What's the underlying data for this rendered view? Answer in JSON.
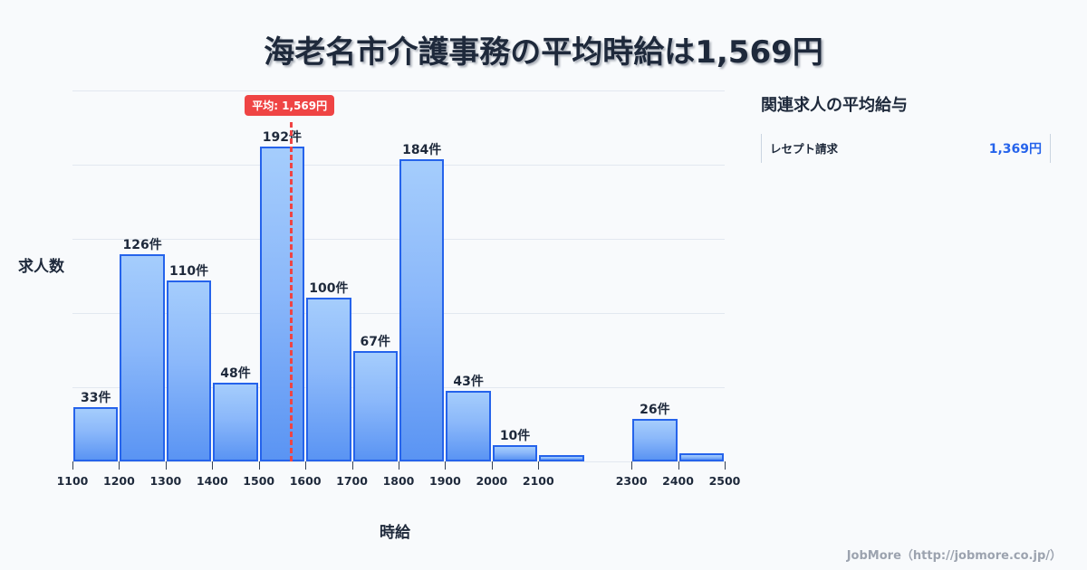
{
  "title": "海老名市介護事務の平均時給は1,569円",
  "chart_data": {
    "type": "bar",
    "title": "海老名市介護事務の平均時給は1,569円",
    "xlabel": "時給",
    "ylabel": "求人数",
    "x_ticks": [
      "1100",
      "1200",
      "1300",
      "1400",
      "1500",
      "1600",
      "1700",
      "1800",
      "1900",
      "2000",
      "2100",
      "2300",
      "2400",
      "2500"
    ],
    "bins": [
      {
        "from": 1100,
        "to": 1200,
        "value": 33,
        "label": "33件"
      },
      {
        "from": 1200,
        "to": 1300,
        "value": 126,
        "label": "126件"
      },
      {
        "from": 1300,
        "to": 1400,
        "value": 110,
        "label": "110件"
      },
      {
        "from": 1400,
        "to": 1500,
        "value": 48,
        "label": "48件"
      },
      {
        "from": 1500,
        "to": 1600,
        "value": 192,
        "label": "192件"
      },
      {
        "from": 1600,
        "to": 1700,
        "value": 100,
        "label": "100件"
      },
      {
        "from": 1700,
        "to": 1800,
        "value": 67,
        "label": "67件"
      },
      {
        "from": 1800,
        "to": 1900,
        "value": 184,
        "label": "184件"
      },
      {
        "from": 1900,
        "to": 2000,
        "value": 43,
        "label": "43件"
      },
      {
        "from": 2000,
        "to": 2100,
        "value": 10,
        "label": "10件"
      },
      {
        "from": 2100,
        "to": 2200,
        "value": 4,
        "label": ""
      },
      {
        "from": 2300,
        "to": 2400,
        "value": 26,
        "label": "26件"
      },
      {
        "from": 2400,
        "to": 2500,
        "value": 5,
        "label": ""
      }
    ],
    "categories": [
      "1100-1200",
      "1200-1300",
      "1300-1400",
      "1400-1500",
      "1500-1600",
      "1600-1700",
      "1700-1800",
      "1800-1900",
      "1900-2000",
      "2000-2100",
      "2100-2200",
      "2300-2400",
      "2400-2500"
    ],
    "values": [
      33,
      126,
      110,
      48,
      192,
      100,
      67,
      184,
      43,
      10,
      4,
      26,
      5
    ],
    "xlim": [
      1100,
      2500
    ],
    "ylim": [
      0,
      226
    ],
    "grid": true,
    "annotations": [
      {
        "type": "vline",
        "x": 1569,
        "label": "平均: 1,569円",
        "color": "#ef4444"
      }
    ],
    "bar_color": "#5a94f3",
    "bar_border": "#2563eb"
  },
  "average": {
    "label": "平均: 1,569円",
    "value": 1569
  },
  "side_panel": {
    "title": "関連求人の平均給与",
    "items": [
      {
        "label": "レセプト請求",
        "value": "1,369円"
      }
    ]
  },
  "footer": "JobMore（http://jobmore.co.jp/）"
}
